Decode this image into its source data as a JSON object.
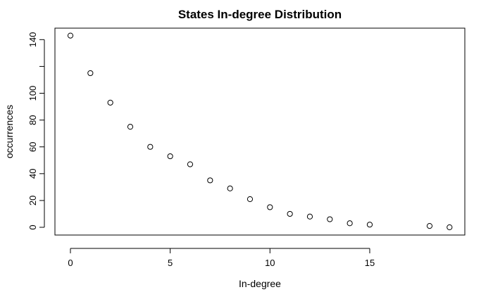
{
  "chart_data": {
    "type": "scatter",
    "title": "States In-degree Distribution",
    "xlabel": "In-degree",
    "ylabel": "occurrences",
    "xlim": [
      0,
      19
    ],
    "ylim": [
      0,
      143
    ],
    "x_ticks": [
      0,
      5,
      10,
      15
    ],
    "y_ticks": [
      0,
      20,
      40,
      60,
      80,
      100,
      140
    ],
    "y_tick_marks": [
      0,
      20,
      40,
      60,
      80,
      100,
      120,
      140
    ],
    "marker": "open-circle",
    "grid": false,
    "legend": "none",
    "colors": {
      "points": "#000000",
      "axes": "#000000"
    },
    "x": [
      0,
      1,
      2,
      3,
      4,
      5,
      6,
      7,
      8,
      9,
      10,
      11,
      12,
      13,
      14,
      15,
      18,
      19
    ],
    "y": [
      143,
      115,
      93,
      75,
      60,
      53,
      47,
      35,
      29,
      21,
      15,
      10,
      8,
      6,
      3,
      2,
      1,
      0
    ]
  }
}
